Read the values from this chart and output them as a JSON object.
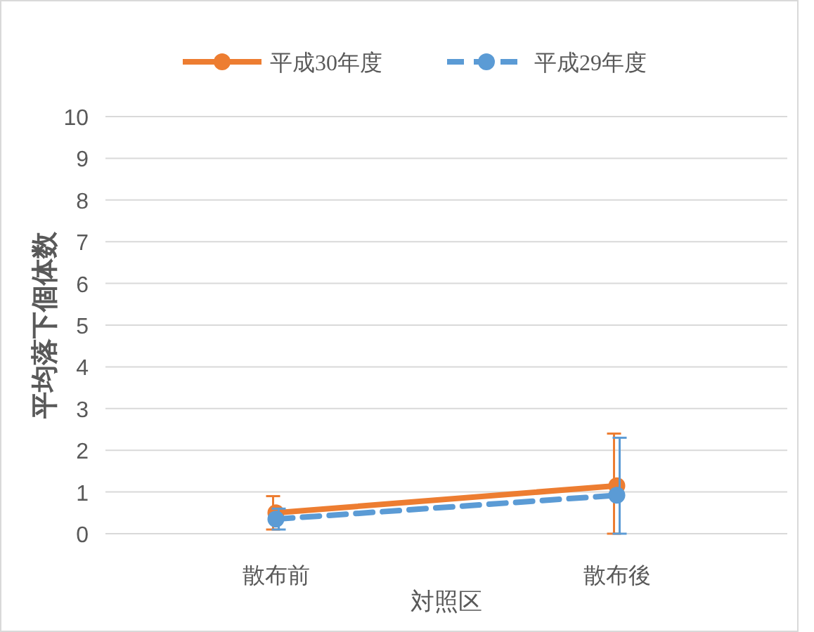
{
  "chart_data": {
    "type": "line",
    "xlabel": "対照区",
    "ylabel": "平均落下個体数",
    "categories": [
      "散布前",
      "散布後"
    ],
    "series": [
      {
        "name": "平成30年度",
        "color": "#ed7d31",
        "values": [
          0.5,
          1.15
        ],
        "errors": [
          [
            0.1,
            0.9
          ],
          [
            0,
            2.4
          ]
        ],
        "line_style": "solid"
      },
      {
        "name": "平成29年度",
        "color": "#5b9bd5",
        "values": [
          0.35,
          0.92
        ],
        "errors": [
          [
            0.1,
            0.6
          ],
          [
            0,
            2.3
          ]
        ],
        "line_style": "dashed"
      }
    ],
    "ylim": [
      0,
      10
    ],
    "yticks": [
      0,
      1,
      2,
      3,
      4,
      5,
      6,
      7,
      8,
      9,
      10
    ],
    "grid": "y",
    "legend": "top",
    "marker": "circle"
  }
}
